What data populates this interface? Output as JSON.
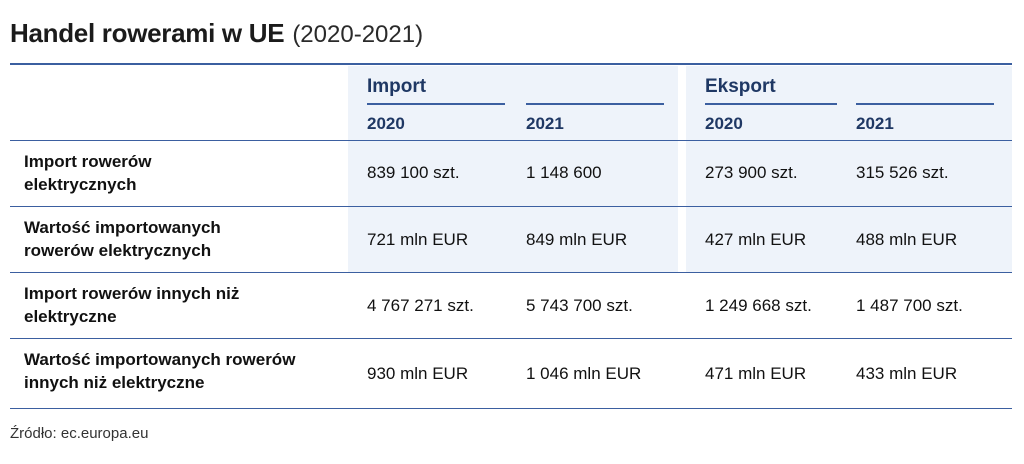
{
  "title": {
    "main": "Handel rowerami w UE",
    "years": "(2020-2021)"
  },
  "groups": [
    {
      "label": "Import",
      "years": [
        "2020",
        "2021"
      ]
    },
    {
      "label": "Eksport",
      "years": [
        "2020",
        "2021"
      ]
    }
  ],
  "rows": [
    {
      "label": "Import rowerów elektrycznych",
      "values": [
        "839 100 szt.",
        "1 148 600",
        "273 900 szt.",
        "315 526 szt."
      ]
    },
    {
      "label": "Wartość importowanych rowerów elektrycznych",
      "values": [
        "721 mln EUR",
        "849 mln EUR",
        "427 mln EUR",
        "488 mln EUR"
      ]
    },
    {
      "label": "Import rowerów innych niż elektryczne",
      "values": [
        "4 767 271 szt.",
        "5 743 700 szt.",
        "1 249 668 szt.",
        "1 487 700 szt."
      ]
    },
    {
      "label": "Wartość importowanych rowerów innych niż elektryczne",
      "values": [
        "930 mln EUR",
        "1 046 mln EUR",
        "471 mln EUR",
        "433 mln EUR"
      ]
    }
  ],
  "source": "Źródło: ec.europa.eu"
}
